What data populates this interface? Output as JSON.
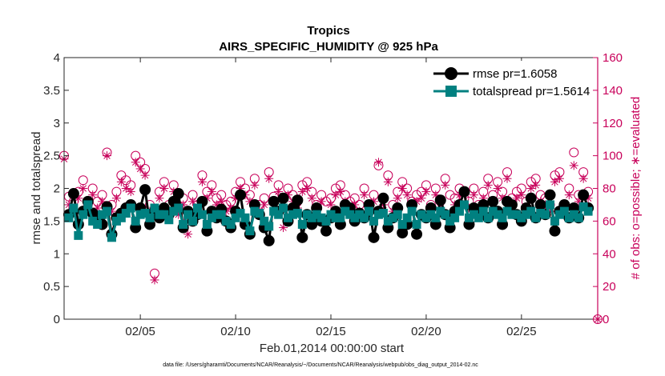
{
  "chart_data": {
    "type": "line",
    "title": "Tropics",
    "subtitle": "AIRS_SPECIFIC_HUMIDITY @ 925 hPa",
    "xlabel": "Feb.01,2014 00:00:00 start",
    "ylabel": "rmse and totalspread",
    "y2label": "# of obs: o=possible; ∗=evaluated",
    "footnote": "data file: /Users/gharamti/Documents/NCAR/Reanalysis/~/Documents/NCAR/Reanalysis/webpub/obs_diag_output_2014-02.nc",
    "xlim": [
      1,
      29
    ],
    "ylim": [
      0,
      4
    ],
    "y2lim": [
      0,
      160
    ],
    "x_ticks": [
      5,
      10,
      15,
      20,
      25
    ],
    "x_tick_labels": [
      "02/05",
      "02/10",
      "02/15",
      "02/20",
      "02/25"
    ],
    "y_ticks": [
      0,
      0.5,
      1,
      1.5,
      2,
      2.5,
      3,
      3.5,
      4
    ],
    "y_tick_labels": [
      "0",
      "0.5",
      "1",
      "1.5",
      "2",
      "2.5",
      "3",
      "3.5",
      "4"
    ],
    "y2_ticks": [
      0,
      20,
      40,
      60,
      80,
      100,
      120,
      140,
      160
    ],
    "y2_tick_labels": [
      "0",
      "20",
      "40",
      "60",
      "80",
      "100",
      "120",
      "140",
      "160"
    ],
    "legend_position": "top-right",
    "series": [
      {
        "name": "rmse",
        "legend": "rmse pr=1.6058",
        "color": "#000000",
        "marker": "circle",
        "axis": "left",
        "x": [
          1.25,
          1.5,
          1.75,
          2.0,
          2.25,
          2.5,
          2.75,
          3.0,
          3.25,
          3.5,
          3.75,
          4.0,
          4.25,
          4.5,
          4.75,
          5.0,
          5.25,
          5.5,
          5.75,
          6.0,
          6.25,
          6.5,
          6.75,
          7.0,
          7.25,
          7.5,
          7.75,
          8.0,
          8.25,
          8.5,
          8.75,
          9.0,
          9.25,
          9.5,
          9.75,
          10.0,
          10.25,
          10.5,
          10.75,
          11.0,
          11.25,
          11.5,
          11.75,
          12.0,
          12.25,
          12.5,
          12.75,
          13.0,
          13.25,
          13.5,
          13.75,
          14.0,
          14.25,
          14.5,
          14.75,
          15.0,
          15.25,
          15.5,
          15.75,
          16.0,
          16.25,
          16.5,
          16.75,
          17.0,
          17.25,
          17.5,
          17.75,
          18.0,
          18.25,
          18.5,
          18.75,
          19.0,
          19.25,
          19.5,
          19.75,
          20.0,
          20.25,
          20.5,
          20.75,
          21.0,
          21.25,
          21.5,
          21.75,
          22.0,
          22.25,
          22.5,
          22.75,
          23.0,
          23.25,
          23.5,
          23.75,
          24.0,
          24.25,
          24.5,
          24.75,
          25.0,
          25.25,
          25.5,
          25.75,
          26.0,
          26.25,
          26.5,
          26.75,
          27.0,
          27.25,
          27.5,
          27.75,
          28.0,
          28.25,
          28.5
        ],
        "values": [
          1.6,
          1.92,
          1.45,
          1.65,
          1.8,
          1.62,
          1.5,
          1.45,
          1.72,
          1.3,
          1.55,
          1.62,
          1.7,
          1.75,
          1.4,
          1.7,
          1.98,
          1.45,
          1.65,
          1.55,
          1.7,
          1.6,
          1.8,
          1.92,
          1.4,
          1.65,
          1.5,
          1.6,
          1.8,
          1.35,
          1.65,
          1.55,
          1.68,
          1.5,
          1.4,
          1.65,
          1.9,
          1.45,
          1.3,
          1.75,
          1.6,
          1.4,
          1.2,
          1.8,
          1.65,
          1.85,
          1.5,
          1.7,
          1.82,
          1.25,
          1.6,
          1.45,
          1.7,
          1.5,
          1.35,
          1.55,
          1.65,
          1.45,
          1.75,
          1.7,
          1.5,
          1.62,
          1.55,
          1.75,
          1.25,
          1.65,
          1.85,
          1.4,
          1.55,
          1.7,
          1.32,
          1.45,
          1.75,
          1.3,
          1.6,
          1.55,
          1.7,
          1.45,
          1.82,
          1.6,
          1.4,
          1.65,
          1.75,
          1.95,
          1.45,
          1.7,
          1.6,
          1.75,
          1.55,
          1.8,
          1.65,
          1.45,
          1.8,
          1.75,
          1.6,
          1.5,
          1.7,
          1.85,
          1.55,
          1.75,
          1.6,
          1.9,
          1.35,
          1.65,
          1.75,
          1.55,
          1.7,
          1.55,
          1.9,
          1.7
        ]
      },
      {
        "name": "totalspread",
        "legend": "totalspread pr=1.5614",
        "color": "#008080",
        "marker": "square",
        "axis": "left",
        "x": [
          1.25,
          1.5,
          1.75,
          2.0,
          2.25,
          2.5,
          2.75,
          3.0,
          3.25,
          3.5,
          3.75,
          4.0,
          4.25,
          4.5,
          4.75,
          5.0,
          5.25,
          5.5,
          5.75,
          6.0,
          6.25,
          6.5,
          6.75,
          7.0,
          7.25,
          7.5,
          7.75,
          8.0,
          8.25,
          8.5,
          8.75,
          9.0,
          9.25,
          9.5,
          9.75,
          10.0,
          10.25,
          10.5,
          10.75,
          11.0,
          11.25,
          11.5,
          11.75,
          12.0,
          12.25,
          12.5,
          12.75,
          13.0,
          13.25,
          13.5,
          13.75,
          14.0,
          14.25,
          14.5,
          14.75,
          15.0,
          15.25,
          15.5,
          15.75,
          16.0,
          16.25,
          16.5,
          16.75,
          17.0,
          17.25,
          17.5,
          17.75,
          18.0,
          18.25,
          18.5,
          18.75,
          19.0,
          19.25,
          19.5,
          19.75,
          20.0,
          20.25,
          20.5,
          20.75,
          21.0,
          21.25,
          21.5,
          21.75,
          22.0,
          22.25,
          22.5,
          22.75,
          23.0,
          23.25,
          23.5,
          23.75,
          24.0,
          24.25,
          24.5,
          24.75,
          25.0,
          25.25,
          25.5,
          25.75,
          26.0,
          26.25,
          26.5,
          26.75,
          27.0,
          27.25,
          27.5,
          27.75,
          28.0,
          28.25,
          28.5
        ],
        "values": [
          1.55,
          1.7,
          1.28,
          1.6,
          1.75,
          1.5,
          1.45,
          1.6,
          1.65,
          1.25,
          1.5,
          1.55,
          1.62,
          1.7,
          1.5,
          1.6,
          1.62,
          1.55,
          1.7,
          1.6,
          1.6,
          1.52,
          1.65,
          1.7,
          1.45,
          1.6,
          1.5,
          1.7,
          1.6,
          1.45,
          1.55,
          1.6,
          1.6,
          1.5,
          1.45,
          1.55,
          1.62,
          1.55,
          1.35,
          1.65,
          1.62,
          1.5,
          1.42,
          1.65,
          1.6,
          1.7,
          1.55,
          1.6,
          1.62,
          1.45,
          1.6,
          1.55,
          1.6,
          1.55,
          1.5,
          1.6,
          1.55,
          1.55,
          1.65,
          1.6,
          1.55,
          1.6,
          1.55,
          1.65,
          1.5,
          1.6,
          1.62,
          1.5,
          1.55,
          1.6,
          1.45,
          1.55,
          1.65,
          1.45,
          1.6,
          1.55,
          1.6,
          1.55,
          1.65,
          1.6,
          1.5,
          1.55,
          1.65,
          1.75,
          1.55,
          1.6,
          1.55,
          1.65,
          1.55,
          1.65,
          1.6,
          1.55,
          1.65,
          1.6,
          1.6,
          1.55,
          1.6,
          1.65,
          1.55,
          1.62,
          1.6,
          1.75,
          1.5,
          1.6,
          1.65,
          1.55,
          1.6,
          1.55,
          1.72,
          1.65
        ]
      },
      {
        "name": "obs_possible",
        "legend": "",
        "color": "#c8005a",
        "marker": "open-circle",
        "axis": "right",
        "x": [
          1.0,
          1.25,
          1.5,
          1.75,
          2.0,
          2.25,
          2.5,
          2.75,
          3.0,
          3.25,
          3.5,
          3.75,
          4.0,
          4.25,
          4.5,
          4.75,
          5.0,
          5.25,
          5.5,
          5.75,
          6.0,
          6.25,
          6.5,
          6.75,
          7.0,
          7.25,
          7.5,
          7.75,
          8.0,
          8.25,
          8.5,
          8.75,
          9.0,
          9.25,
          9.5,
          9.75,
          10.0,
          10.25,
          10.5,
          10.75,
          11.0,
          11.25,
          11.5,
          11.75,
          12.0,
          12.25,
          12.5,
          12.75,
          13.0,
          13.25,
          13.5,
          13.75,
          14.0,
          14.25,
          14.5,
          14.75,
          15.0,
          15.25,
          15.5,
          15.75,
          16.0,
          16.25,
          16.5,
          16.75,
          17.0,
          17.25,
          17.5,
          17.75,
          18.0,
          18.25,
          18.5,
          18.75,
          19.0,
          19.25,
          19.5,
          19.75,
          20.0,
          20.25,
          20.5,
          20.75,
          21.0,
          21.25,
          21.5,
          21.75,
          22.0,
          22.25,
          22.5,
          22.75,
          23.0,
          23.25,
          23.5,
          23.75,
          24.0,
          24.25,
          24.5,
          24.75,
          25.0,
          25.25,
          25.5,
          25.75,
          26.0,
          26.25,
          26.5,
          26.75,
          27.0,
          27.25,
          27.5,
          27.75,
          28.0,
          28.25,
          28.5,
          29.0
        ],
        "values": [
          100,
          75,
          72,
          78,
          85,
          70,
          80,
          72,
          76,
          102,
          70,
          78,
          88,
          85,
          82,
          100,
          96,
          92,
          70,
          28,
          78,
          84,
          70,
          82,
          68,
          74,
          60,
          76,
          70,
          88,
          78,
          82,
          74,
          76,
          70,
          72,
          78,
          84,
          80,
          76,
          86,
          70,
          74,
          90,
          75,
          82,
          68,
          80,
          76,
          72,
          82,
          84,
          78,
          70,
          76,
          72,
          74,
          80,
          82,
          76,
          72,
          74,
          70,
          80,
          68,
          76,
          94,
          74,
          88,
          70,
          78,
          84,
          80,
          72,
          76,
          78,
          82,
          70,
          80,
          72,
          86,
          76,
          74,
          80,
          74,
          72,
          80,
          70,
          78,
          86,
          76,
          84,
          78,
          90,
          74,
          78,
          80,
          72,
          84,
          86,
          76,
          74,
          70,
          88,
          90,
          70,
          80,
          102,
          76,
          90,
          78,
          0
        ]
      },
      {
        "name": "obs_evaluated",
        "legend": "",
        "color": "#c8005a",
        "marker": "asterisk",
        "axis": "right",
        "x": [
          1.0,
          1.25,
          1.5,
          1.75,
          2.0,
          2.25,
          2.5,
          2.75,
          3.0,
          3.25,
          3.5,
          3.75,
          4.0,
          4.25,
          4.5,
          4.75,
          5.0,
          5.25,
          5.5,
          5.75,
          6.0,
          6.25,
          6.5,
          6.75,
          7.0,
          7.25,
          7.5,
          7.75,
          8.0,
          8.25,
          8.5,
          8.75,
          9.0,
          9.25,
          9.5,
          9.75,
          10.0,
          10.25,
          10.5,
          10.75,
          11.0,
          11.25,
          11.5,
          11.75,
          12.0,
          12.25,
          12.5,
          12.75,
          13.0,
          13.25,
          13.5,
          13.75,
          14.0,
          14.25,
          14.5,
          14.75,
          15.0,
          15.25,
          15.5,
          15.75,
          16.0,
          16.25,
          16.5,
          16.75,
          17.0,
          17.25,
          17.5,
          17.75,
          18.0,
          18.25,
          18.5,
          18.75,
          19.0,
          19.25,
          19.5,
          19.75,
          20.0,
          20.25,
          20.5,
          20.75,
          21.0,
          21.25,
          21.5,
          21.75,
          22.0,
          22.25,
          22.5,
          22.75,
          23.0,
          23.25,
          23.5,
          23.75,
          24.0,
          24.25,
          24.5,
          24.75,
          25.0,
          25.25,
          25.5,
          25.75,
          26.0,
          26.25,
          26.5,
          26.75,
          27.0,
          27.25,
          27.5,
          27.75,
          28.0,
          28.25,
          28.5,
          29.0
        ],
        "values": [
          98,
          70,
          66,
          74,
          80,
          66,
          76,
          68,
          72,
          100,
          66,
          74,
          84,
          80,
          78,
          96,
          92,
          88,
          66,
          24,
          74,
          80,
          66,
          78,
          64,
          70,
          52,
          72,
          66,
          84,
          74,
          78,
          70,
          72,
          66,
          68,
          74,
          80,
          76,
          72,
          82,
          66,
          70,
          86,
          72,
          78,
          56,
          76,
          72,
          68,
          78,
          80,
          74,
          66,
          72,
          60,
          70,
          76,
          78,
          72,
          68,
          70,
          66,
          76,
          64,
          72,
          96,
          70,
          84,
          66,
          74,
          80,
          76,
          68,
          72,
          74,
          78,
          66,
          76,
          68,
          82,
          56,
          70,
          76,
          70,
          68,
          76,
          66,
          74,
          82,
          72,
          80,
          74,
          86,
          70,
          74,
          76,
          68,
          80,
          82,
          72,
          70,
          66,
          84,
          86,
          66,
          76,
          94,
          72,
          86,
          74,
          0
        ]
      }
    ]
  }
}
